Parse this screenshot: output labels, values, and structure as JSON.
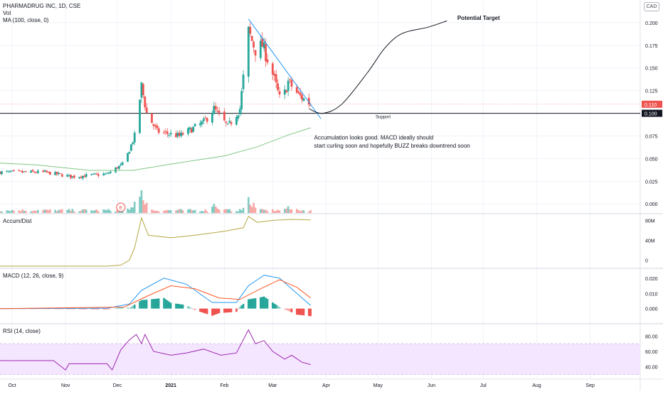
{
  "header": {
    "symbol_line": "PHARMADRUG INC, 1D, CSE",
    "vol_label": "Vol",
    "ma_label": "MA (100, close, 0)",
    "currency": "CAD"
  },
  "colors": {
    "up": "#26a69a",
    "down": "#ef5350",
    "up_vol": "#80cbc4",
    "down_vol": "#f7a9a7",
    "ma": "#81c784",
    "trend": "#2196f3",
    "ad": "#b5a642",
    "macd": "#2196f3",
    "signal": "#ff5722",
    "rsi": "#9c27b0",
    "rsi_band": "#f3e0ff",
    "grid": "#f0f3fa",
    "axis_text": "#131722"
  },
  "chart_data": [
    {
      "type": "candlestick",
      "pane": "price",
      "title": "PHARMADRUG INC, 1D, CSE",
      "x_range": [
        "2020-09-24",
        "2021-09-30"
      ],
      "ylim": [
        -0.01,
        0.225
      ],
      "y_ticks": [
        0.0,
        0.025,
        0.05,
        0.075,
        0.1,
        0.125,
        0.15,
        0.175,
        0.2
      ],
      "y_tick_labels": [
        "0.000",
        "0.025",
        "0.050",
        "0.075",
        "0.100",
        "0.125",
        "0.150",
        "0.175",
        "0.200"
      ],
      "x_ticks": [
        "2020-10-01",
        "2020-11-01",
        "2020-12-01",
        "2021-01-01",
        "2021-02-01",
        "2021-03-01",
        "2021-04-01",
        "2021-05-01",
        "2021-06-01",
        "2021-07-01",
        "2021-08-01",
        "2021-09-01"
      ],
      "x_tick_labels": [
        "Oct",
        "Nov",
        "Dec",
        "2021",
        "Feb",
        "Mar",
        "Apr",
        "May",
        "Jun",
        "Jul",
        "Aug",
        "Sep"
      ],
      "price_labels": [
        {
          "value": 0.11,
          "text": "0.110",
          "color": "#ef5350"
        },
        {
          "value": 0.1,
          "text": "0.100",
          "color": "#131722"
        }
      ],
      "support_level": 0.1,
      "support_label": "Support",
      "waypoints": [
        [
          "2020-09-24",
          0.035
        ],
        [
          "2020-10-20",
          0.035
        ],
        [
          "2020-11-05",
          0.03
        ],
        [
          "2020-11-25",
          0.033
        ],
        [
          "2020-12-05",
          0.045
        ],
        [
          "2020-12-11",
          0.075
        ],
        [
          "2020-12-15",
          0.13
        ],
        [
          "2020-12-18",
          0.1
        ],
        [
          "2020-12-24",
          0.08
        ],
        [
          "2021-01-06",
          0.075
        ],
        [
          "2021-01-20",
          0.09
        ],
        [
          "2021-01-26",
          0.105
        ],
        [
          "2021-02-03",
          0.085
        ],
        [
          "2021-02-10",
          0.105
        ],
        [
          "2021-02-15",
          0.19
        ],
        [
          "2021-02-19",
          0.17
        ],
        [
          "2021-02-23",
          0.175
        ],
        [
          "2021-02-28",
          0.15
        ],
        [
          "2021-03-06",
          0.11
        ],
        [
          "2021-03-10",
          0.135
        ],
        [
          "2021-03-16",
          0.12
        ],
        [
          "2021-03-23",
          0.11
        ]
      ],
      "ma_points": [
        [
          "2020-09-24",
          0.045
        ],
        [
          "2020-10-15",
          0.043
        ],
        [
          "2020-11-15",
          0.037
        ],
        [
          "2020-12-10",
          0.037
        ],
        [
          "2021-01-01",
          0.044
        ],
        [
          "2021-02-01",
          0.053
        ],
        [
          "2021-02-20",
          0.063
        ],
        [
          "2021-03-10",
          0.076
        ],
        [
          "2021-03-23",
          0.084
        ]
      ],
      "trendline": [
        [
          "2021-02-15",
          0.204
        ],
        [
          "2021-03-29",
          0.094
        ]
      ],
      "projection": [
        [
          "2021-03-22",
          0.105
        ],
        [
          "2021-03-30",
          0.1
        ],
        [
          "2021-04-10",
          0.11
        ],
        [
          "2021-04-25",
          0.145
        ],
        [
          "2021-05-05",
          0.172
        ],
        [
          "2021-05-15",
          0.188
        ],
        [
          "2021-05-30",
          0.195
        ],
        [
          "2021-06-10",
          0.202
        ]
      ],
      "annotations": [
        {
          "text": "Potential Target",
          "x": "2021-06-16",
          "y": 0.203
        },
        {
          "text": "Accumulation looks good. MACD ideally should",
          "x": "2021-03-25",
          "y": 0.071
        },
        {
          "text": "start curling soon and hopefully BUZZ breaks downtrend soon",
          "x": "2021-03-25",
          "y": 0.062
        }
      ],
      "earnings_marker": {
        "date": "2020-12-03",
        "text": "E"
      }
    },
    {
      "type": "bar",
      "pane": "volume",
      "name": "Vol",
      "note": "volume in relative units; tallest bar = 1.0",
      "spikes": [
        [
          "2020-12-05",
          0.35
        ],
        [
          "2020-12-11",
          0.5
        ],
        [
          "2020-12-15",
          1.0
        ],
        [
          "2020-12-18",
          0.45
        ],
        [
          "2021-02-15",
          0.7
        ],
        [
          "2021-02-18",
          0.45
        ],
        [
          "2021-01-26",
          0.4
        ],
        [
          "2021-03-10",
          0.3
        ]
      ]
    },
    {
      "type": "line",
      "pane": "accum",
      "title": "Accum/Dist",
      "ylim": [
        -15,
        92
      ],
      "y_ticks": [
        0,
        40,
        80
      ],
      "y_tick_labels": [
        "0",
        "40M",
        "80M"
      ],
      "points": [
        [
          "2020-09-24",
          -12
        ],
        [
          "2020-11-25",
          -12
        ],
        [
          "2020-12-03",
          -10
        ],
        [
          "2020-12-08",
          0
        ],
        [
          "2020-12-11",
          25
        ],
        [
          "2020-12-15",
          85
        ],
        [
          "2020-12-19",
          50
        ],
        [
          "2021-01-01",
          45
        ],
        [
          "2021-01-15",
          50
        ],
        [
          "2021-02-01",
          58
        ],
        [
          "2021-02-12",
          65
        ],
        [
          "2021-02-15",
          88
        ],
        [
          "2021-02-20",
          76
        ],
        [
          "2021-03-01",
          80
        ],
        [
          "2021-03-12",
          82
        ],
        [
          "2021-03-23",
          81
        ]
      ]
    },
    {
      "type": "line",
      "pane": "macd",
      "title": "MACD (12, 26, close, 9)",
      "ylim": [
        -0.0095,
        0.026
      ],
      "y_ticks": [
        0,
        0.01,
        0.02
      ],
      "y_tick_labels": [
        "0.000",
        "0.010",
        "0.020"
      ],
      "series": [
        {
          "name": "MACD",
          "points": [
            [
              "2020-09-24",
              0
            ],
            [
              "2020-11-25",
              0.0002
            ],
            [
              "2020-12-08",
              0.003
            ],
            [
              "2020-12-15",
              0.012
            ],
            [
              "2020-12-28",
              0.02
            ],
            [
              "2021-01-10",
              0.016
            ],
            [
              "2021-01-25",
              0.004
            ],
            [
              "2021-02-08",
              0.004
            ],
            [
              "2021-02-15",
              0.015
            ],
            [
              "2021-02-24",
              0.022
            ],
            [
              "2021-03-05",
              0.02
            ],
            [
              "2021-03-15",
              0.01
            ],
            [
              "2021-03-23",
              0.002
            ]
          ]
        },
        {
          "name": "Signal",
          "points": [
            [
              "2020-09-24",
              0
            ],
            [
              "2020-12-05",
              0.001
            ],
            [
              "2020-12-18",
              0.008
            ],
            [
              "2021-01-01",
              0.015
            ],
            [
              "2021-01-15",
              0.013
            ],
            [
              "2021-01-29",
              0.007
            ],
            [
              "2021-02-10",
              0.006
            ],
            [
              "2021-02-22",
              0.013
            ],
            [
              "2021-03-05",
              0.019
            ],
            [
              "2021-03-15",
              0.014
            ],
            [
              "2021-03-23",
              0.007
            ]
          ]
        }
      ]
    },
    {
      "type": "line",
      "pane": "rsi",
      "title": "RSI (14, close)",
      "ylim": [
        25,
        95
      ],
      "band": [
        30,
        70
      ],
      "y_ticks": [
        40,
        60,
        80
      ],
      "y_tick_labels": [
        "40.00",
        "60.00",
        "80.00"
      ],
      "points": [
        [
          "2020-09-24",
          48
        ],
        [
          "2020-10-10",
          48
        ],
        [
          "2020-10-25",
          48
        ],
        [
          "2020-11-01",
          36
        ],
        [
          "2020-11-03",
          44
        ],
        [
          "2020-11-15",
          44
        ],
        [
          "2020-11-25",
          44
        ],
        [
          "2020-11-28",
          36
        ],
        [
          "2020-12-03",
          62
        ],
        [
          "2020-12-08",
          75
        ],
        [
          "2020-12-12",
          82
        ],
        [
          "2020-12-15",
          70
        ],
        [
          "2020-12-17",
          82
        ],
        [
          "2020-12-22",
          60
        ],
        [
          "2021-01-01",
          55
        ],
        [
          "2021-01-10",
          58
        ],
        [
          "2021-01-20",
          63
        ],
        [
          "2021-01-30",
          55
        ],
        [
          "2021-02-08",
          58
        ],
        [
          "2021-02-15",
          88
        ],
        [
          "2021-02-19",
          70
        ],
        [
          "2021-02-24",
          74
        ],
        [
          "2021-03-01",
          60
        ],
        [
          "2021-03-08",
          50
        ],
        [
          "2021-03-12",
          55
        ],
        [
          "2021-03-18",
          46
        ],
        [
          "2021-03-23",
          43
        ]
      ]
    }
  ]
}
